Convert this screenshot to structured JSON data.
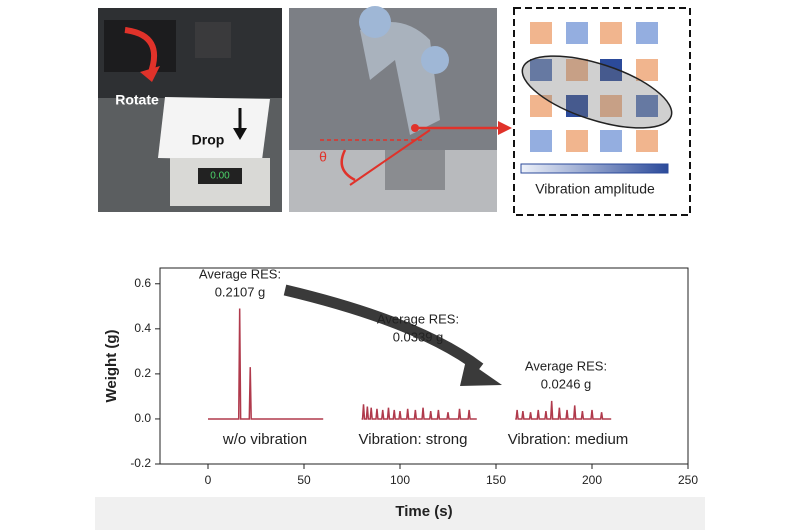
{
  "chart_data": {
    "type": "line",
    "xlabel": "Time (s)",
    "ylabel": "Weight (g)",
    "xlim": [
      -25,
      250
    ],
    "ylim": [
      -0.2,
      0.67
    ],
    "xticks": [
      0,
      50,
      100,
      150,
      200,
      250
    ],
    "yticks": [
      -0.2,
      {
        "value": 0,
        "label": "0.0"
      },
      0.2,
      0.4,
      0.6
    ],
    "series": [
      {
        "color": "#b03a4c",
        "x": [
          0,
          16,
          16.5,
          17,
          21.5,
          22,
          22.5,
          60
        ],
        "values": [
          0,
          0,
          0.49,
          0,
          0,
          0.23,
          0,
          0
        ]
      },
      {
        "color": "#b03a4c",
        "x": [
          80,
          80.5,
          81,
          81.5,
          82.5,
          83,
          83.5,
          84.5,
          85,
          85.5,
          87.5,
          88,
          88.5,
          90.5,
          91,
          91.5,
          93.5,
          94,
          94.5,
          96.5,
          97,
          97.5,
          99.5,
          100,
          100.5,
          103.5,
          104,
          104.5,
          107.5,
          108,
          108.5,
          111.5,
          112,
          112.5,
          115.5,
          116,
          116.5,
          119.5,
          120,
          120.5,
          124.5,
          125,
          125.5,
          130.5,
          131,
          131.5,
          135.5,
          136,
          136.5,
          140
        ],
        "values": [
          0,
          0,
          0.065,
          0,
          0,
          0.055,
          0,
          0,
          0.05,
          0,
          0,
          0.045,
          0,
          0,
          0.04,
          0,
          0,
          0.05,
          0,
          0,
          0.04,
          0,
          0,
          0.035,
          0,
          0,
          0.045,
          0,
          0,
          0.04,
          0,
          0,
          0.05,
          0,
          0,
          0.035,
          0,
          0,
          0.04,
          0,
          0,
          0.03,
          0,
          0,
          0.045,
          0,
          0,
          0.04,
          0,
          0
        ]
      },
      {
        "color": "#b03a4c",
        "x": [
          160,
          160.5,
          161,
          161.5,
          163.5,
          164,
          164.5,
          167.5,
          168,
          168.5,
          171.5,
          172,
          172.5,
          175.5,
          176,
          176.5,
          178.5,
          179,
          179.5,
          182.5,
          183,
          183.5,
          186.5,
          187,
          187.5,
          190.5,
          191,
          191.5,
          194.5,
          195,
          195.5,
          199.5,
          200,
          200.5,
          204.5,
          205,
          205.5,
          210
        ],
        "values": [
          0,
          0,
          0.04,
          0,
          0,
          0.035,
          0,
          0,
          0.03,
          0,
          0,
          0.04,
          0,
          0,
          0.035,
          0,
          0,
          0.08,
          0,
          0,
          0.05,
          0,
          0,
          0.04,
          0,
          0,
          0.06,
          0,
          0,
          0.035,
          0,
          0,
          0.04,
          0,
          0,
          0.03,
          0,
          0
        ]
      }
    ],
    "annotations": [
      {
        "lines": [
          "Average RES:",
          "0.2107 g"
        ]
      },
      {
        "lines": [
          "Average RES:",
          "0.0339 g"
        ]
      },
      {
        "lines": [
          "Average RES:",
          "0.0246 g"
        ]
      }
    ],
    "group_labels": [
      "w/o vibration",
      "Vibration: strong",
      "Vibration: medium"
    ]
  },
  "panels": {
    "photo_1": {
      "labels": [
        "Rotate",
        "Drop",
        "0.00"
      ]
    },
    "photo_2": {
      "labels": [
        "θ"
      ]
    },
    "diagram": {
      "legend": "Vibration amplitude"
    }
  }
}
